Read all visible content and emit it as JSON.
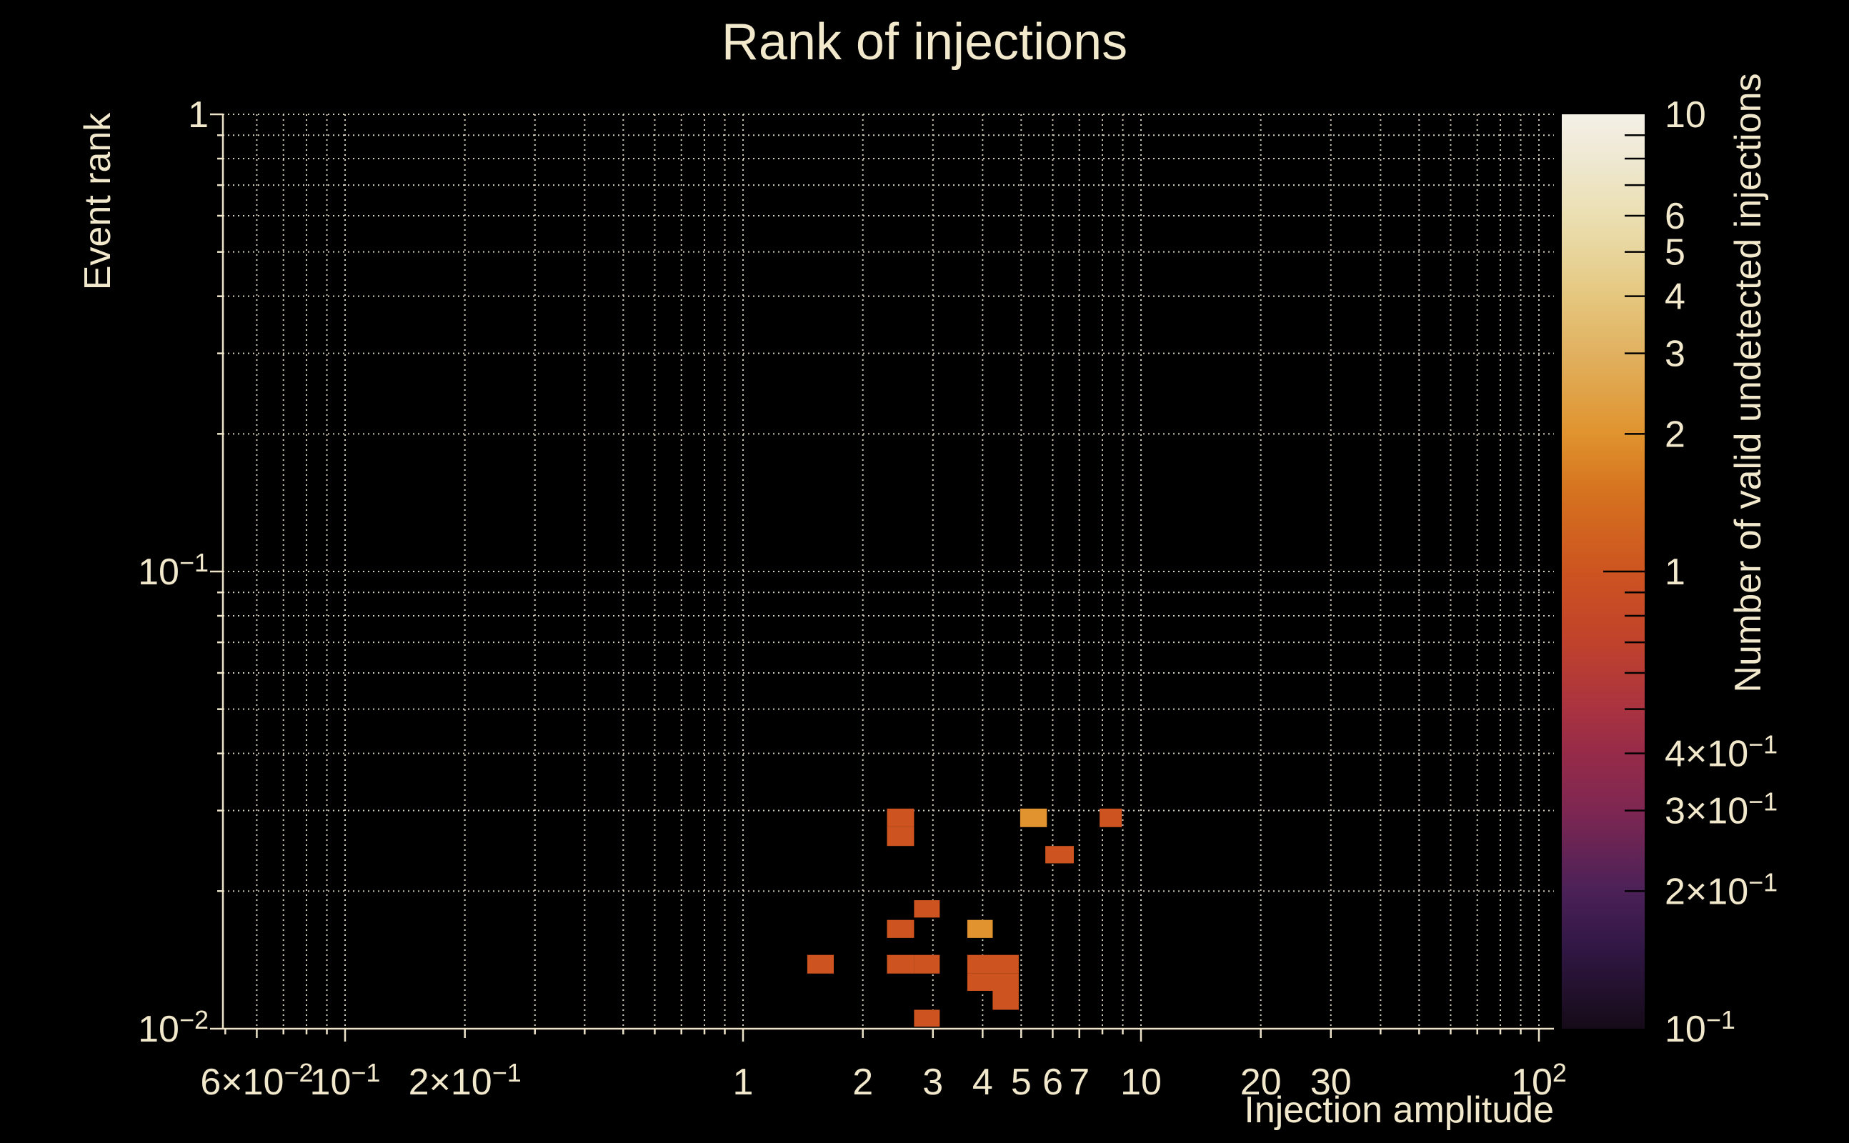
{
  "title": "Rank of injections",
  "colors": {
    "background": "#000000",
    "text": "#f2e8cc",
    "grid": "#d8d1bd",
    "spine": "#ece3c9",
    "colorbar_tick": "#000000",
    "cell_count_1": "#cd5420",
    "cell_count_2": "#e0932e"
  },
  "chart_data": {
    "type": "heatmap",
    "title": "Rank of injections",
    "xlabel": "Injection amplitude",
    "ylabel": "Event rank",
    "colorbar_label": "Number of valid undetected injections",
    "xscale": "log",
    "yscale": "log",
    "colorscale": "log",
    "xlim": [
      0.0494,
      109
    ],
    "ylim": [
      0.01,
      1
    ],
    "clim": [
      0.1,
      10
    ],
    "grid": "dotted minor+major, both axes",
    "legend_position": "colorbar right",
    "x_ticks": [
      {
        "v": 0.06,
        "t": "6×10",
        "s": "−2"
      },
      {
        "v": 0.1,
        "t": "10",
        "s": "−1"
      },
      {
        "v": 0.2,
        "t": "2×10",
        "s": "−1"
      },
      {
        "v": 1,
        "t": "1"
      },
      {
        "v": 2,
        "t": "2"
      },
      {
        "v": 3,
        "t": "3"
      },
      {
        "v": 4,
        "t": "4"
      },
      {
        "v": 5,
        "t": "5"
      },
      {
        "v": 6,
        "t": "6"
      },
      {
        "v": 7,
        "t": "7"
      },
      {
        "v": 10,
        "t": "10"
      },
      {
        "v": 20,
        "t": "20"
      },
      {
        "v": 30,
        "t": "30"
      },
      {
        "v": 100,
        "t": "10",
        "s": "2"
      }
    ],
    "y_ticks": [
      {
        "v": 1,
        "t": "1"
      },
      {
        "v": 0.1,
        "t": "10",
        "s": "−1"
      },
      {
        "v": 0.01,
        "t": "10",
        "s": "−2"
      }
    ],
    "colorbar_ticks": [
      {
        "v": 10,
        "t": "10"
      },
      {
        "v": 6,
        "t": "6"
      },
      {
        "v": 5,
        "t": "5"
      },
      {
        "v": 4,
        "t": "4"
      },
      {
        "v": 3,
        "t": "3"
      },
      {
        "v": 2,
        "t": "2"
      },
      {
        "v": 1,
        "t": "1"
      },
      {
        "v": 0.4,
        "t": "4×10",
        "s": "−1"
      },
      {
        "v": 0.3,
        "t": "3×10",
        "s": "−1"
      },
      {
        "v": 0.2,
        "t": "2×10",
        "s": "−1"
      },
      {
        "v": 0.1,
        "t": "10",
        "s": "−1"
      }
    ],
    "colormap_stops": [
      {
        "v": 10,
        "color": "#f3f0e6"
      },
      {
        "v": 8,
        "color": "#efe8d2"
      },
      {
        "v": 6,
        "color": "#ebdfb2"
      },
      {
        "v": 5,
        "color": "#e8d59c"
      },
      {
        "v": 4,
        "color": "#e5c77e"
      },
      {
        "v": 3,
        "color": "#e1b160"
      },
      {
        "v": 2,
        "color": "#e0932e"
      },
      {
        "v": 1.5,
        "color": "#d5731f"
      },
      {
        "v": 1,
        "color": "#cd5420"
      },
      {
        "v": 0.7,
        "color": "#c0422c"
      },
      {
        "v": 0.5,
        "color": "#a93340"
      },
      {
        "v": 0.4,
        "color": "#962b49"
      },
      {
        "v": 0.3,
        "color": "#7e2752"
      },
      {
        "v": 0.2,
        "color": "#4b2158"
      },
      {
        "v": 0.15,
        "color": "#311744"
      },
      {
        "v": 0.1,
        "color": "#150b18"
      }
    ],
    "cells": [
      {
        "amp": [
          2.3,
          2.69
        ],
        "rank": [
          0.0276,
          0.0303
        ],
        "count": 1
      },
      {
        "amp": [
          2.3,
          2.69
        ],
        "rank": [
          0.0251,
          0.0276
        ],
        "count": 1
      },
      {
        "amp": [
          4.97,
          5.8
        ],
        "rank": [
          0.0276,
          0.0303
        ],
        "count": 2
      },
      {
        "amp": [
          7.87,
          8.95
        ],
        "rank": [
          0.0276,
          0.0303
        ],
        "count": 1
      },
      {
        "amp": [
          5.75,
          6.78
        ],
        "rank": [
          0.023,
          0.0251
        ],
        "count": 1
      },
      {
        "amp": [
          2.69,
          3.12
        ],
        "rank": [
          0.0175,
          0.0191
        ],
        "count": 1
      },
      {
        "amp": [
          2.3,
          2.69
        ],
        "rank": [
          0.0158,
          0.0173
        ],
        "count": 1
      },
      {
        "amp": [
          3.66,
          4.24
        ],
        "rank": [
          0.0158,
          0.0173
        ],
        "count": 2
      },
      {
        "amp": [
          1.45,
          1.69
        ],
        "rank": [
          0.0132,
          0.0145
        ],
        "count": 1
      },
      {
        "amp": [
          2.3,
          2.69
        ],
        "rank": [
          0.0132,
          0.0145
        ],
        "count": 1
      },
      {
        "amp": [
          2.69,
          3.12
        ],
        "rank": [
          0.0132,
          0.0145
        ],
        "count": 1
      },
      {
        "amp": [
          3.66,
          4.24
        ],
        "rank": [
          0.0132,
          0.0145
        ],
        "count": 1
      },
      {
        "amp": [
          4.24,
          4.93
        ],
        "rank": [
          0.0132,
          0.0145
        ],
        "count": 1
      },
      {
        "amp": [
          3.66,
          4.24
        ],
        "rank": [
          0.0121,
          0.0132
        ],
        "count": 1
      },
      {
        "amp": [
          4.24,
          4.93
        ],
        "rank": [
          0.0121,
          0.0132
        ],
        "count": 1
      },
      {
        "amp": [
          4.24,
          4.93
        ],
        "rank": [
          0.011,
          0.0121
        ],
        "count": 1
      },
      {
        "amp": [
          2.69,
          3.12
        ],
        "rank": [
          0.0101,
          0.011
        ],
        "count": 1
      }
    ]
  }
}
